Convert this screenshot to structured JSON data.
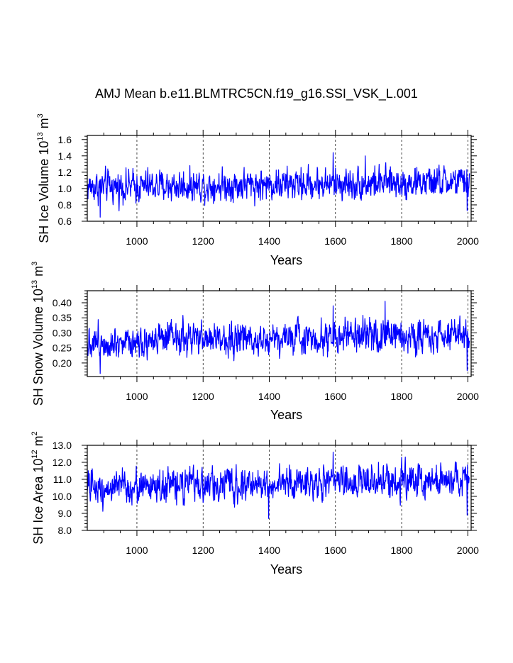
{
  "title": "AMJ Mean b.e11.BLMTRC5CN.f19_g16.SSI_VSK_L.001",
  "chart_data": [
    {
      "type": "line",
      "title": "AMJ Mean b.e11.BLMTRC5CN.f19_g16.SSI_VSK_L.001",
      "xlabel": "Years",
      "ylabel": {
        "base": "SH Ice Volume 10",
        "exp": "13",
        "unit": " m",
        "unit_exp": "3"
      },
      "xlim": [
        850,
        2010
      ],
      "ylim": [
        0.6,
        1.65
      ],
      "xticks": [
        1000,
        1200,
        1400,
        1600,
        1800,
        2000
      ],
      "yticks": [
        0.6,
        0.8,
        1.0,
        1.2,
        1.4,
        1.6
      ],
      "ytick_labels": [
        "0.6",
        "0.8",
        "1.0",
        "1.2",
        "1.4",
        "1.6"
      ],
      "line_color": "#0000ff",
      "grid": "dashed-vertical",
      "series": {
        "name": "SH Ice Volume",
        "x_start": 850,
        "x_end": 2005,
        "step": 1,
        "mean": 1.02,
        "trend": 0.06,
        "noise": 0.09,
        "spikes": [
          [
            889,
            0.65
          ],
          [
            1593,
            1.44
          ],
          [
            1690,
            1.4
          ],
          [
            1998,
            0.73
          ]
        ]
      }
    },
    {
      "type": "line",
      "xlabel": "Years",
      "ylabel": {
        "base": "SH Snow Volume 10",
        "exp": "13",
        "unit": " m",
        "unit_exp": "3"
      },
      "xlim": [
        850,
        2010
      ],
      "ylim": [
        0.155,
        0.44
      ],
      "xticks": [
        1000,
        1200,
        1400,
        1600,
        1800,
        2000
      ],
      "yticks": [
        0.2,
        0.25,
        0.3,
        0.35,
        0.4
      ],
      "ytick_labels": [
        "0.20",
        "0.25",
        "0.30",
        "0.35",
        "0.40"
      ],
      "line_color": "#0000ff",
      "grid": "dashed-vertical",
      "series": {
        "name": "SH Snow Volume",
        "x_start": 850,
        "x_end": 2005,
        "step": 1,
        "mean": 0.272,
        "trend": 0.022,
        "noise": 0.025,
        "spikes": [
          [
            889,
            0.165
          ],
          [
            1593,
            0.39
          ],
          [
            1750,
            0.405
          ],
          [
            1998,
            0.175
          ]
        ]
      }
    },
    {
      "type": "line",
      "xlabel": "Years",
      "ylabel": {
        "base": "SH Ice Area 10",
        "exp": "12",
        "unit": " m",
        "unit_exp": "2"
      },
      "xlim": [
        850,
        2010
      ],
      "ylim": [
        8.0,
        13.0
      ],
      "xticks": [
        1000,
        1200,
        1400,
        1600,
        1800,
        2000
      ],
      "yticks": [
        8.0,
        9.0,
        10.0,
        11.0,
        12.0,
        13.0
      ],
      "ytick_labels": [
        "8.0",
        "9.0",
        "10.0",
        "11.0",
        "12.0",
        "13.0"
      ],
      "line_color": "#0000ff",
      "grid": "dashed-vertical",
      "series": {
        "name": "SH Ice Area",
        "x_start": 850,
        "x_end": 2005,
        "step": 1,
        "mean": 10.5,
        "trend": 0.5,
        "noise": 0.45,
        "spikes": [
          [
            1398,
            8.7
          ],
          [
            1593,
            12.6
          ],
          [
            1800,
            12.3
          ],
          [
            1998,
            8.9
          ]
        ]
      }
    }
  ]
}
